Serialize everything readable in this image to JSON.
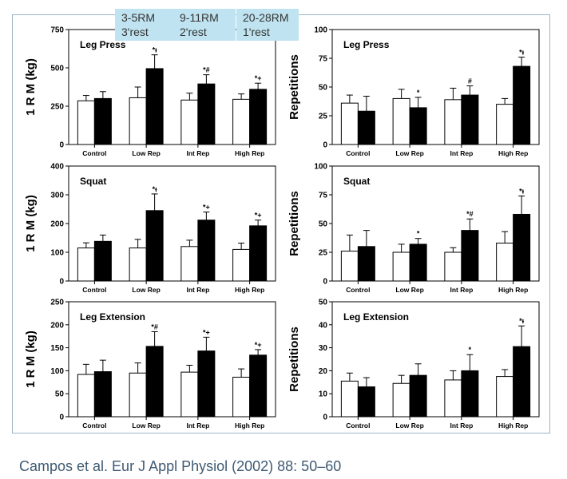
{
  "protocol_legend": [
    {
      "reps": "3-5RM",
      "rest": "3'rest"
    },
    {
      "reps": "9-11RM",
      "rest": "2'rest"
    },
    {
      "reps": "20-28RM",
      "rest": "1'rest"
    }
  ],
  "citation": "Campos et al. Eur J Appl Physiol (2002) 88: 50–60",
  "colors": {
    "open_bar": "#ffffff",
    "filled_bar": "#000000",
    "border": "#9db4c6",
    "legend_fill": "#bfe3f0"
  },
  "chart_data": [
    {
      "type": "bar",
      "title": "Leg  Press",
      "ylabel": "1 R M  (kg)",
      "xlabel": "",
      "categories": [
        "Control",
        "Low Rep",
        "Int Rep",
        "High Rep"
      ],
      "ylim": [
        0,
        750
      ],
      "yticks": [
        "0",
        "250",
        "500",
        "750"
      ],
      "series": [
        {
          "values": [
            285,
            305,
            290,
            295
          ],
          "errors": [
            35,
            70,
            45,
            35
          ]
        },
        {
          "values": [
            300,
            495,
            395,
            360
          ],
          "errors": [
            45,
            90,
            60,
            40
          ]
        }
      ],
      "annotations": [
        "",
        "*ᵼ",
        "*#",
        "*+"
      ]
    },
    {
      "type": "bar",
      "title": "Leg  Press",
      "ylabel": "Repetitions",
      "xlabel": "",
      "categories": [
        "Control",
        "Low Rep",
        "Int Rep",
        "High Rep"
      ],
      "ylim": [
        0,
        100
      ],
      "yticks": [
        "0",
        "25",
        "50",
        "75",
        "100"
      ],
      "series": [
        {
          "values": [
            36,
            40,
            39,
            35
          ],
          "errors": [
            7,
            8,
            10,
            5
          ]
        },
        {
          "values": [
            29,
            32,
            43,
            68
          ],
          "errors": [
            13,
            9,
            8,
            8
          ]
        }
      ],
      "annotations": [
        "",
        "*",
        "#",
        "*ᵼ"
      ]
    },
    {
      "type": "bar",
      "title": "Squat",
      "ylabel": "1 R M  (kg)",
      "xlabel": "",
      "categories": [
        "Control",
        "Low Rep",
        "Int Rep",
        "High Rep"
      ],
      "ylim": [
        0,
        400
      ],
      "yticks": [
        "0",
        "100",
        "200",
        "300",
        "400"
      ],
      "series": [
        {
          "values": [
            115,
            115,
            120,
            110
          ],
          "errors": [
            18,
            30,
            22,
            22
          ]
        },
        {
          "values": [
            138,
            245,
            212,
            192
          ],
          "errors": [
            22,
            58,
            28,
            20
          ]
        }
      ],
      "annotations": [
        "",
        "*ᵼ",
        "*+",
        "*+"
      ]
    },
    {
      "type": "bar",
      "title": "Squat",
      "ylabel": "Repetitions",
      "xlabel": "",
      "categories": [
        "Control",
        "Low Rep",
        "Int Rep",
        "High Rep"
      ],
      "ylim": [
        0,
        100
      ],
      "yticks": [
        "0",
        "25",
        "50",
        "75",
        "100"
      ],
      "series": [
        {
          "values": [
            26,
            25,
            25,
            33
          ],
          "errors": [
            14,
            7,
            4,
            10
          ]
        },
        {
          "values": [
            30,
            32,
            44,
            58
          ],
          "errors": [
            14,
            5,
            10,
            16
          ]
        }
      ],
      "annotations": [
        "",
        "*",
        "*#",
        "*ᵼ"
      ]
    },
    {
      "type": "bar",
      "title": "Leg  Extension",
      "ylabel": "1 R M  (kg)",
      "xlabel": "",
      "categories": [
        "Control",
        "Low Rep",
        "Int Rep",
        "High Rep"
      ],
      "ylim": [
        0,
        250
      ],
      "yticks": [
        "0",
        "50",
        "100",
        "150",
        "200",
        "250"
      ],
      "series": [
        {
          "values": [
            92,
            95,
            97,
            86
          ],
          "errors": [
            22,
            22,
            15,
            18
          ]
        },
        {
          "values": [
            98,
            153,
            143,
            134
          ],
          "errors": [
            25,
            32,
            30,
            12
          ]
        }
      ],
      "annotations": [
        "",
        "*#",
        "*+",
        "*+"
      ]
    },
    {
      "type": "bar",
      "title": "Leg  Extension",
      "ylabel": "Repetitions",
      "xlabel": "",
      "categories": [
        "Control",
        "Low Rep",
        "Int Rep",
        "High Rep"
      ],
      "ylim": [
        0,
        50
      ],
      "yticks": [
        "0",
        "10",
        "20",
        "30",
        "40",
        "50"
      ],
      "series": [
        {
          "values": [
            15.5,
            14.5,
            16,
            17.5
          ],
          "errors": [
            3.5,
            3.5,
            4,
            3
          ]
        },
        {
          "values": [
            13,
            18,
            20,
            30.5
          ],
          "errors": [
            4,
            5,
            7,
            9
          ]
        }
      ],
      "annotations": [
        "",
        "",
        "*",
        "*ᵼ"
      ]
    }
  ]
}
